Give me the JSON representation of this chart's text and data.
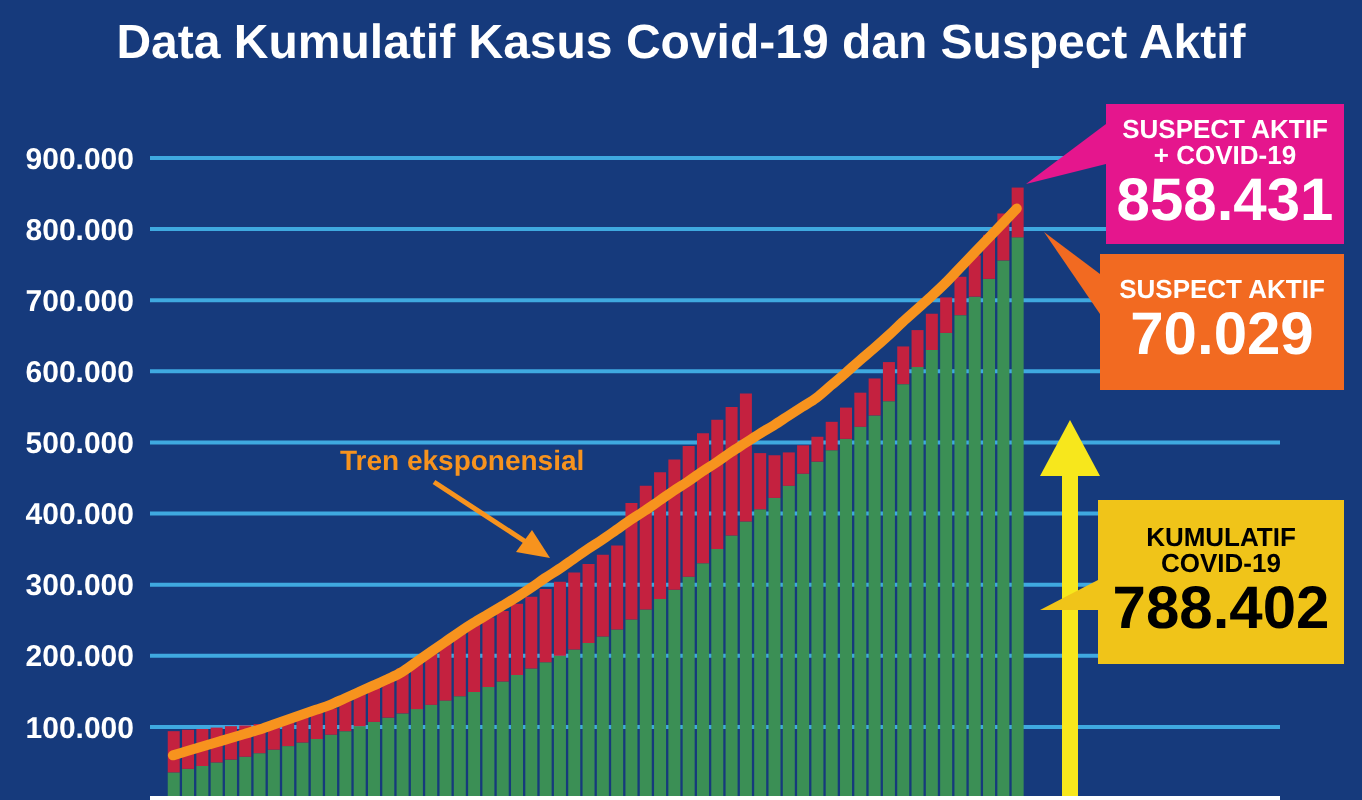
{
  "chart_data": {
    "type": "bar",
    "title": "Data Kumulatif Kasus Covid-19 dan Suspect Aktif",
    "stacked": true,
    "categories": [
      null,
      null,
      null,
      null,
      null,
      null,
      null,
      null,
      null,
      null,
      null,
      null,
      null,
      null,
      null,
      null,
      null,
      null,
      null,
      null,
      null,
      null,
      null,
      null,
      null,
      null,
      null,
      null,
      null,
      null,
      null,
      null,
      null,
      null,
      null,
      null,
      null,
      null,
      null,
      null,
      null,
      null,
      null,
      null,
      null,
      null,
      null,
      null,
      null,
      null,
      null,
      null,
      null,
      null,
      null,
      null,
      null,
      null,
      null,
      null
    ],
    "series": [
      {
        "color": "#3b8f55",
        "values": [
          36000,
          41000,
          45000,
          50000,
          54000,
          58000,
          63000,
          68000,
          73000,
          78000,
          83000,
          89000,
          94000,
          101000,
          107000,
          113000,
          119000,
          125000,
          131000,
          137000,
          143000,
          149000,
          156000,
          164000,
          173000,
          182000,
          191000,
          200000,
          209000,
          218000,
          227000,
          237000,
          251000,
          265000,
          280000,
          293000,
          311000,
          330000,
          350000,
          369000,
          389000,
          406000,
          422000,
          439000,
          456000,
          473000,
          489000,
          505000,
          522000,
          538000,
          558000,
          582000,
          606000,
          630000,
          654000,
          679000,
          705000,
          730000,
          756000,
          788402
        ]
      },
      {
        "color": "#c4213f",
        "values": [
          58000,
          55000,
          52000,
          49000,
          47000,
          44000,
          41000,
          39000,
          39000,
          39000,
          38000,
          37000,
          42000,
          48000,
          53000,
          58000,
          63000,
          70000,
          77000,
          84000,
          91000,
          96000,
          98000,
          99000,
          100000,
          101000,
          103000,
          104000,
          108000,
          111000,
          115000,
          118000,
          164000,
          174000,
          178000,
          183000,
          184000,
          183000,
          182000,
          181000,
          180000,
          79000,
          60000,
          47000,
          40000,
          35000,
          40000,
          44000,
          48000,
          52000,
          55000,
          53000,
          52000,
          51000,
          50000,
          54000,
          58000,
          62000,
          66000,
          70029
        ]
      },
      {
        "name": "Tren eksponensial",
        "type": "line",
        "color": "#f7931e",
        "values": [
          60000,
          66000,
          72000,
          78000,
          84000,
          90000,
          96000,
          103000,
          110000,
          117000,
          124000,
          131000,
          140000,
          149000,
          158000,
          167000,
          177000,
          191000,
          205000,
          219000,
          233000,
          246000,
          258000,
          270000,
          282000,
          295000,
          309000,
          322000,
          336000,
          350000,
          363000,
          377000,
          391000,
          404000,
          418000,
          432000,
          445000,
          459000,
          472000,
          486000,
          499000,
          512000,
          524000,
          537000,
          550000,
          563000,
          580000,
          597000,
          615000,
          632000,
          650000,
          669000,
          687000,
          705000,
          724000,
          745000,
          766000,
          787000,
          808000,
          829000
        ]
      }
    ],
    "ylim": [
      0,
      900000
    ],
    "yticks": [
      {
        "value": 100000,
        "label": "100.000"
      },
      {
        "value": 200000,
        "label": "200.000"
      },
      {
        "value": 300000,
        "label": "300.000"
      },
      {
        "value": 400000,
        "label": "400.000"
      },
      {
        "value": 500000,
        "label": "500.000"
      },
      {
        "value": 600000,
        "label": "600.000"
      },
      {
        "value": 700000,
        "label": "700.000"
      },
      {
        "value": 800000,
        "label": "800.000"
      },
      {
        "value": 900000,
        "label": "900.000"
      }
    ],
    "grid": "y",
    "tick_labels": "y",
    "annotations": [
      "SUSPECT AKTIF\n+ COVID-19\n858.431",
      "SUSPECT AKTIF\n70.029",
      "KUMULATIF\nCOVID-19\n788.402"
    ]
  }
}
